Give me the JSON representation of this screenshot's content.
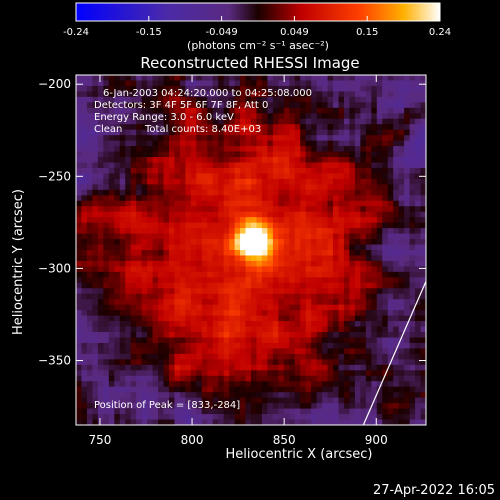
{
  "colorbar": {
    "ticks": [
      "-0.24",
      "-0.15",
      "-0.049",
      "0.049",
      "0.15",
      "0.24"
    ],
    "unit_label": "(photons cm⁻² s⁻¹ asec⁻²)"
  },
  "chart_data": {
    "type": "heatmap",
    "title": "Reconstructed RHESSI Image",
    "xlabel": "Heliocentric X (arcsec)",
    "ylabel": "Heliocentric Y (arcsec)",
    "xlim": [
      737,
      927
    ],
    "ylim": [
      -385,
      -195
    ],
    "x_ticks": [
      750,
      800,
      850,
      900
    ],
    "y_ticks": [
      -200,
      -250,
      -300,
      -350
    ],
    "x_tick_labels": [
      "750",
      "800",
      "850",
      "900"
    ],
    "y_tick_labels": [
      "−200",
      "−250",
      "−300",
      "−350"
    ],
    "color_range": [
      -0.24,
      0.24
    ],
    "peak": [
      833,
      -284
    ],
    "limb_line": [
      [
        893,
        -385
      ],
      [
        927,
        -307
      ]
    ],
    "annotations": {
      "time": "6-Jan-2003 04:24:20.000 to 04:25:08.000",
      "detectors": "Detectors: 3F 4F 5F 6F 7F 8F, Att 0",
      "energy": "Energy Range: 3.0 - 6.0 keV",
      "clean": "Clean",
      "counts": "Total counts: 8.40E+03",
      "peak_text": "Position of Peak = [833,-284]"
    }
  },
  "footer": {
    "date": "27-Apr-2022 16:05"
  }
}
